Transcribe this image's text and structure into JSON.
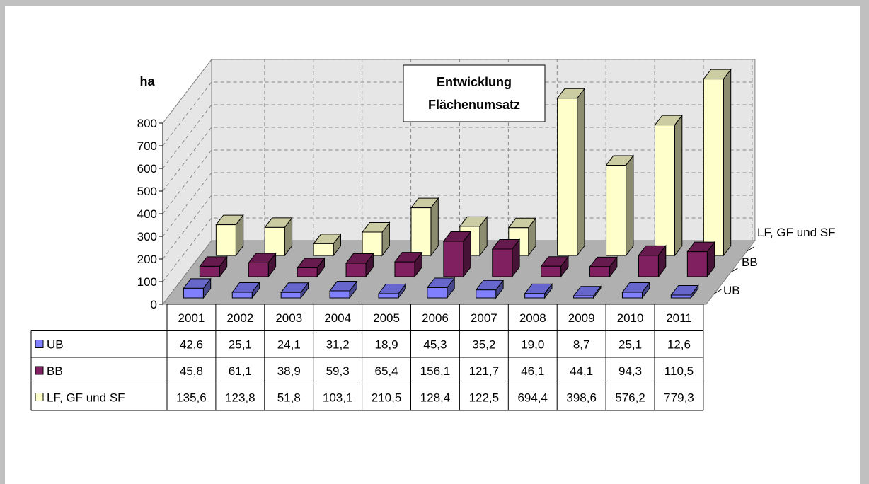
{
  "chart_data": {
    "type": "bar",
    "title_lines": [
      "Entwicklung",
      "Flächenumsatz"
    ],
    "ylabel": "ha",
    "ylim": [
      0,
      800
    ],
    "yticks": [
      "0",
      "100",
      "200",
      "300",
      "400",
      "500",
      "600",
      "700",
      "800"
    ],
    "categories": [
      "2001",
      "2002",
      "2003",
      "2004",
      "2005",
      "2006",
      "2007",
      "2008",
      "2009",
      "2010",
      "2011"
    ],
    "grid": true,
    "legend": "table",
    "series": [
      {
        "name": "UB",
        "color": "#8080ff",
        "values": [
          42.6,
          25.1,
          24.1,
          31.2,
          18.9,
          45.3,
          35.2,
          19.0,
          8.7,
          25.1,
          12.6
        ],
        "labels": [
          "42,6",
          "25,1",
          "24,1",
          "31,2",
          "18,9",
          "45,3",
          "35,2",
          "19,0",
          "8,7",
          "25,1",
          "12,6"
        ]
      },
      {
        "name": "BB",
        "color": "#802060",
        "values": [
          45.8,
          61.1,
          38.9,
          59.3,
          65.4,
          156.1,
          121.7,
          46.1,
          44.1,
          94.3,
          110.5
        ],
        "labels": [
          "45,8",
          "61,1",
          "38,9",
          "59,3",
          "65,4",
          "156,1",
          "121,7",
          "46,1",
          "44,1",
          "94,3",
          "110,5"
        ]
      },
      {
        "name": "LF, GF und SF",
        "color": "#ffffcc",
        "values": [
          135.6,
          123.8,
          51.8,
          103.1,
          210.5,
          128.4,
          122.5,
          694.4,
          398.6,
          576.2,
          779.3
        ],
        "labels": [
          "135,6",
          "123,8",
          "51,8",
          "103,1",
          "210,5",
          "128,4",
          "122,5",
          "694,4",
          "398,6",
          "576,2",
          "779,3"
        ]
      }
    ]
  }
}
